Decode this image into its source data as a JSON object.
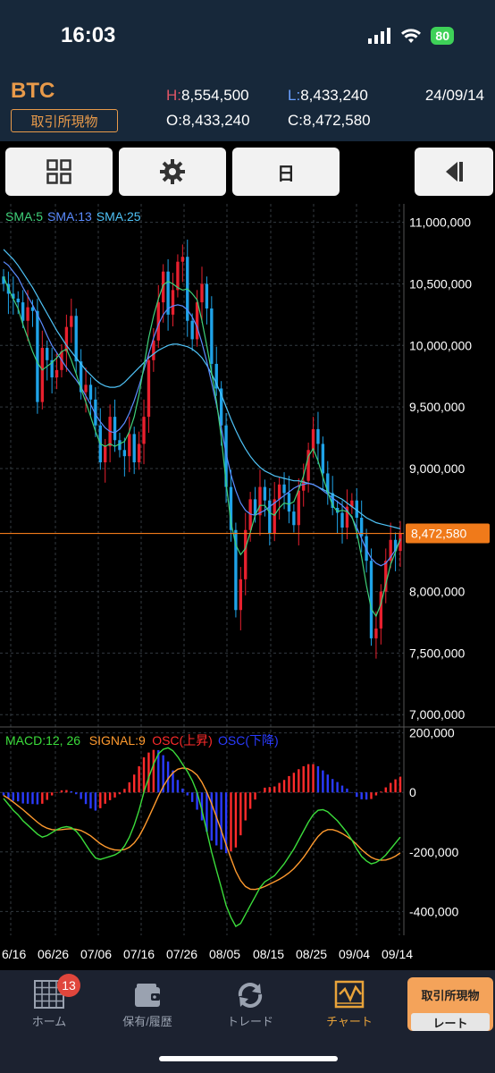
{
  "status_bar": {
    "time": "16:03",
    "battery": "80",
    "signal_icon": "cellular-signal-icon",
    "wifi_icon": "wifi-icon"
  },
  "header": {
    "symbol": "BTC",
    "market": "取引所現物",
    "high_key": "H:",
    "high": "8,554,500",
    "low_key": "L:",
    "low": "8,433,240",
    "open_key": "O:",
    "open": "8,433,240",
    "close_key": "C:",
    "close": "8,472,580",
    "date": "24/09/14",
    "colors": {
      "symbol": "#e89a4a",
      "high_key": "#e05566",
      "low_key": "#6aa0ff"
    }
  },
  "toolbar": {
    "layout_icon": "grid-icon",
    "settings_icon": "gear-icon",
    "period_label": "日",
    "collapse_icon": "collapse-panel-icon"
  },
  "chart": {
    "price_axis": [
      "11,000,000",
      "10,500,000",
      "10,000,000",
      "9,500,000",
      "9,000,000",
      "8,000,000",
      "7,500,000",
      "7,000,000"
    ],
    "current_price_label": "8,472,580",
    "sma_labels": [
      {
        "text": "SMA:5",
        "color": "#3fd17a"
      },
      {
        "text": "SMA:13",
        "color": "#5b8cff"
      },
      {
        "text": "SMA:25",
        "color": "#4fc3f7"
      }
    ],
    "macd_labels": [
      {
        "text": "MACD:12, 26",
        "color": "#3bdc3b"
      },
      {
        "text": "SIGNAL:9",
        "color": "#ff9a2e"
      },
      {
        "text": "OSC(上昇)",
        "color": "#ff2b2b"
      },
      {
        "text": "OSC(下降)",
        "color": "#2a3bff"
      }
    ],
    "macd_axis": [
      "200,000",
      "0",
      "-200,000",
      "-400,000"
    ],
    "date_axis": [
      "6/16",
      "06/26",
      "07/06",
      "07/16",
      "07/26",
      "08/05",
      "08/15",
      "08/25",
      "09/04",
      "09/14"
    ],
    "colors": {
      "up": "#e8202e",
      "down": "#1fa3e8",
      "price_line": "#f07a1a",
      "grid": "#333a40"
    }
  },
  "chart_data": [
    {
      "type": "candlestick",
      "title": "",
      "ylim": [
        6900000,
        11150000
      ],
      "x_start": "2024-06-13",
      "x_end": "2024-09-14",
      "close": [
        10500000,
        10420000,
        10380000,
        10350000,
        10200000,
        10310000,
        10280000,
        9540000,
        9980000,
        9880000,
        9740000,
        9800000,
        9950000,
        10150000,
        10240000,
        9870000,
        9620000,
        9680000,
        9560000,
        9350000,
        9050000,
        9180000,
        9420000,
        9230000,
        9150000,
        9100000,
        9280000,
        9050000,
        9200000,
        9420000,
        9880000,
        10040000,
        10350000,
        10600000,
        10250000,
        10450000,
        10680000,
        10720000,
        10200000,
        10050000,
        10350000,
        10500000,
        10300000,
        9850000,
        9650000,
        9350000,
        8850000,
        8500000,
        7850000,
        8100000,
        8500000,
        8750000,
        8620000,
        8850000,
        8740000,
        8470000,
        8750000,
        8870000,
        8800000,
        8650000,
        8540000,
        8820000,
        8900000,
        9150000,
        9320000,
        9200000,
        8960000,
        8800000,
        8680000,
        8640000,
        8520000,
        8690000,
        8740000,
        8600000,
        8450000,
        8250000,
        7620000,
        7700000,
        8000000,
        8250000,
        8420000,
        8330000,
        8472580
      ],
      "sma5": [
        10560000,
        10460000,
        10380000,
        10300000,
        10170000,
        10060000,
        9950000,
        9860000,
        9800000,
        9830000,
        9860000,
        9900000,
        9950000,
        9970000,
        9880000,
        9770000,
        9650000,
        9540000,
        9420000,
        9300000,
        9200000,
        9180000,
        9200000,
        9180000,
        9200000,
        9220000,
        9300000,
        9420000,
        9600000,
        9830000,
        10060000,
        10240000,
        10380000,
        10490000,
        10520000,
        10500000,
        10470000,
        10450000,
        10460000,
        10420000,
        10370000,
        10200000,
        10000000,
        9780000,
        9550000,
        9250000,
        8880000,
        8560000,
        8380000,
        8300000,
        8350000,
        8480000,
        8620000,
        8700000,
        8700000,
        8640000,
        8620000,
        8680000,
        8720000,
        8710000,
        8730000,
        8830000,
        8940000,
        9100000,
        9160000,
        9060000,
        8930000,
        8810000,
        8700000,
        8650000,
        8660000,
        8650000,
        8610000,
        8480000,
        8280000,
        8050000,
        7860000,
        7800000,
        7900000,
        8060000,
        8220000,
        8320000,
        8430000
      ],
      "sma13": [
        10680000,
        10650000,
        10600000,
        10550000,
        10470000,
        10400000,
        10330000,
        10250000,
        10170000,
        10080000,
        10000000,
        9940000,
        9880000,
        9820000,
        9770000,
        9720000,
        9660000,
        9590000,
        9520000,
        9440000,
        9380000,
        9330000,
        9300000,
        9290000,
        9320000,
        9370000,
        9450000,
        9550000,
        9670000,
        9800000,
        9930000,
        10060000,
        10170000,
        10250000,
        10300000,
        10320000,
        10330000,
        10320000,
        10290000,
        10230000,
        10150000,
        10020000,
        9870000,
        9700000,
        9520000,
        9330000,
        9120000,
        8950000,
        8820000,
        8720000,
        8660000,
        8630000,
        8620000,
        8640000,
        8660000,
        8690000,
        8720000,
        8750000,
        8780000,
        8810000,
        8840000,
        8860000,
        8870000,
        8880000,
        8870000,
        8850000,
        8820000,
        8790000,
        8760000,
        8730000,
        8700000,
        8660000,
        8600000,
        8520000,
        8430000,
        8340000,
        8270000,
        8230000,
        8210000,
        8230000,
        8280000,
        8340000,
        8420000
      ],
      "sma25": [
        10780000,
        10740000,
        10700000,
        10650000,
        10590000,
        10530000,
        10470000,
        10400000,
        10330000,
        10260000,
        10190000,
        10120000,
        10060000,
        10000000,
        9950000,
        9900000,
        9850000,
        9800000,
        9760000,
        9720000,
        9690000,
        9670000,
        9660000,
        9660000,
        9670000,
        9700000,
        9740000,
        9780000,
        9820000,
        9860000,
        9900000,
        9930000,
        9960000,
        9980000,
        10000000,
        10010000,
        10010000,
        10000000,
        9990000,
        9970000,
        9940000,
        9900000,
        9840000,
        9770000,
        9690000,
        9600000,
        9500000,
        9400000,
        9310000,
        9230000,
        9160000,
        9100000,
        9050000,
        9010000,
        8980000,
        8960000,
        8940000,
        8930000,
        8920000,
        8910000,
        8900000,
        8900000,
        8890000,
        8880000,
        8870000,
        8850000,
        8830000,
        8810000,
        8790000,
        8770000,
        8750000,
        8720000,
        8690000,
        8660000,
        8630000,
        8600000,
        8580000,
        8560000,
        8550000,
        8540000,
        8530000,
        8520000,
        8510000
      ]
    },
    {
      "type": "line",
      "title": "",
      "ylim": [
        -480000,
        220000
      ],
      "macd": [
        -20000,
        -40000,
        -60000,
        -75000,
        -95000,
        -110000,
        -125000,
        -140000,
        -150000,
        -145000,
        -135000,
        -125000,
        -118000,
        -115000,
        -118000,
        -130000,
        -150000,
        -175000,
        -200000,
        -220000,
        -225000,
        -220000,
        -215000,
        -210000,
        -200000,
        -180000,
        -150000,
        -110000,
        -60000,
        0,
        50000,
        95000,
        130000,
        145000,
        150000,
        140000,
        120000,
        95000,
        70000,
        40000,
        0,
        -60000,
        -130000,
        -200000,
        -260000,
        -320000,
        -380000,
        -420000,
        -450000,
        -440000,
        -410000,
        -380000,
        -350000,
        -320000,
        -300000,
        -290000,
        -280000,
        -260000,
        -240000,
        -215000,
        -190000,
        -160000,
        -130000,
        -100000,
        -75000,
        -60000,
        -58000,
        -65000,
        -80000,
        -95000,
        -115000,
        -135000,
        -160000,
        -190000,
        -215000,
        -230000,
        -240000,
        -235000,
        -225000,
        -210000,
        -190000,
        -170000,
        -150000
      ],
      "signal": [
        -10000,
        -20000,
        -32000,
        -45000,
        -58000,
        -72000,
        -86000,
        -100000,
        -112000,
        -120000,
        -125000,
        -126000,
        -125000,
        -123000,
        -122000,
        -124000,
        -128000,
        -136000,
        -146000,
        -159000,
        -172000,
        -182000,
        -189000,
        -193000,
        -194000,
        -192000,
        -184000,
        -170000,
        -148000,
        -118000,
        -84000,
        -48000,
        -12000,
        20000,
        46000,
        66000,
        78000,
        82000,
        80000,
        72000,
        58000,
        34000,
        2000,
        -38000,
        -82000,
        -128000,
        -176000,
        -222000,
        -265000,
        -296000,
        -316000,
        -325000,
        -326000,
        -322000,
        -316000,
        -308000,
        -300000,
        -292000,
        -282000,
        -270000,
        -256000,
        -238000,
        -218000,
        -195000,
        -170000,
        -148000,
        -132000,
        -125000,
        -125000,
        -130000,
        -138000,
        -148000,
        -160000,
        -175000,
        -192000,
        -206000,
        -218000,
        -225000,
        -228000,
        -227000,
        -222000,
        -214000,
        -203000
      ],
      "series": [
        {
          "name": "MACD:12, 26"
        },
        {
          "name": "SIGNAL:9"
        },
        {
          "name": "OSC(上昇)"
        },
        {
          "name": "OSC(下降)"
        }
      ]
    }
  ],
  "tabbar": {
    "items": [
      {
        "label": "ホーム",
        "icon": "home-grid-icon",
        "badge": "13"
      },
      {
        "label": "保有/履歴",
        "icon": "wallet-icon"
      },
      {
        "label": "トレード",
        "icon": "refresh-arrows-icon"
      },
      {
        "label": "チャート",
        "icon": "chart-icon"
      }
    ],
    "rate_button": {
      "top_label": "取引所現物",
      "bottom_label": "レート"
    }
  }
}
